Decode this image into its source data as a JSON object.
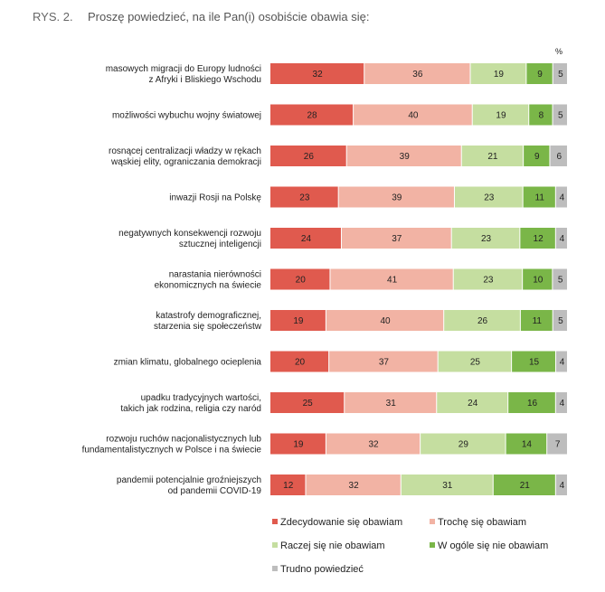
{
  "figure_label": "RYS. 2.",
  "title": "Proszę powiedzieć, na ile Pan(i) osobiście obawia się:",
  "chart_data": {
    "type": "bar",
    "stacked": true,
    "orientation": "horizontal",
    "unit": "%",
    "title": "Proszę powiedzieć, na ile Pan(i) osobiście obawia się:",
    "categories": [
      [
        "masowych migracji do Europy ludności",
        "z Afryki i Bliskiego Wschodu"
      ],
      [
        "możliwości wybuchu wojny światowej"
      ],
      [
        "rosnącej centralizacji władzy w rękach",
        "wąskiej elity, ograniczania demokracji"
      ],
      [
        "inwazji Rosji na Polskę"
      ],
      [
        "negatywnych konsekwencji rozwoju",
        "sztucznej inteligencji"
      ],
      [
        "narastania nierówności",
        "ekonomicznych na świecie"
      ],
      [
        "katastrofy demograficznej,",
        "starzenia się społeczeństw"
      ],
      [
        "zmian klimatu, globalnego ocieplenia"
      ],
      [
        "upadku tradycyjnych wartości,",
        "takich jak rodzina, religia czy naród"
      ],
      [
        "rozwoju ruchów nacjonalistycznych lub",
        "fundamentalistycznych w Polsce i na świecie"
      ],
      [
        "pandemii potencjalnie groźniejszych",
        "od pandemii COVID-19"
      ]
    ],
    "series": [
      {
        "name": "Zdecydowanie się obawiam",
        "color": "#e05a4e",
        "values": [
          32,
          28,
          26,
          23,
          24,
          20,
          19,
          20,
          25,
          19,
          12
        ]
      },
      {
        "name": "Trochę się obawiam",
        "color": "#f2b3a4",
        "values": [
          36,
          40,
          39,
          39,
          37,
          41,
          40,
          37,
          31,
          32,
          32
        ]
      },
      {
        "name": "Raczej się nie obawiam",
        "color": "#c5dea0",
        "values": [
          19,
          19,
          21,
          23,
          23,
          23,
          26,
          25,
          24,
          29,
          31
        ]
      },
      {
        "name": "W ogóle się nie obawiam",
        "color": "#7ab648",
        "values": [
          9,
          8,
          9,
          11,
          12,
          10,
          11,
          15,
          16,
          14,
          21
        ]
      },
      {
        "name": "Trudno powiedzieć",
        "color": "#bdbdbd",
        "values": [
          5,
          5,
          6,
          4,
          4,
          5,
          5,
          4,
          4,
          7,
          4
        ]
      }
    ]
  }
}
